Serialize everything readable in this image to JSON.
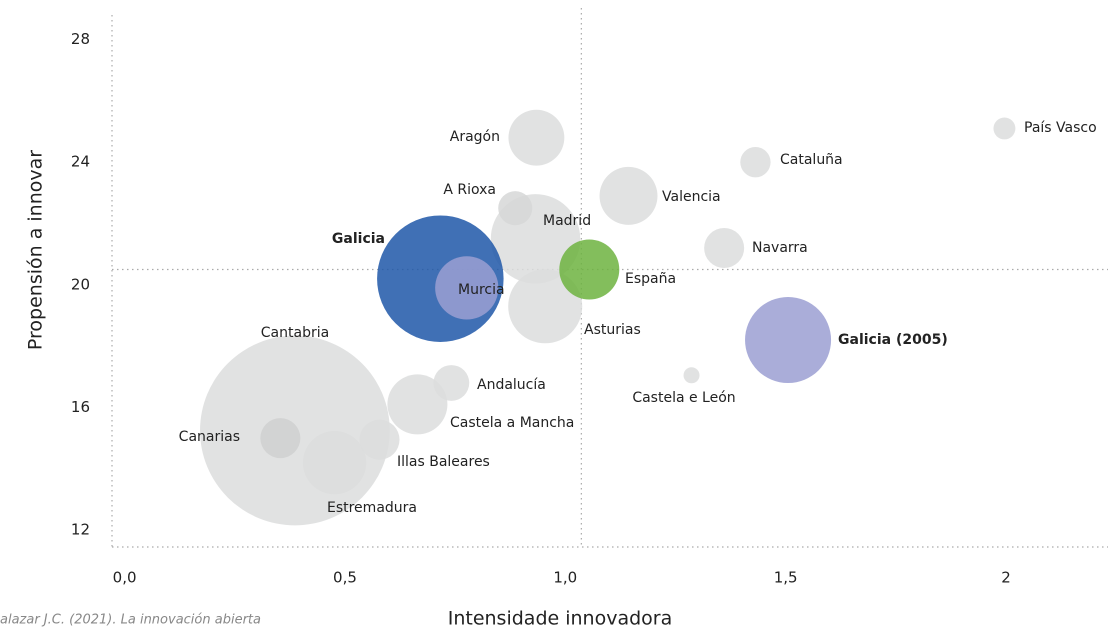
{
  "chart_data": {
    "type": "scatter",
    "xlabel": "Intensidade innovadora",
    "ylabel": "Propensión a innovar",
    "source": "alazar J.C. (2021). La innovación abierta",
    "xlim": [
      -0.015,
      2.245
    ],
    "ylim": [
      11.45,
      28.8
    ],
    "xticks": [
      {
        "value": 0,
        "label": "0,0"
      },
      {
        "value": 0.5,
        "label": "0,5"
      },
      {
        "value": 1,
        "label": "1,0"
      },
      {
        "value": 1.5,
        "label": "1,5"
      },
      2
    ],
    "yticks": [
      12,
      16,
      20,
      24,
      28
    ],
    "reference_lines": {
      "x": 1.05,
      "y": 20.5
    },
    "series": [
      {
        "labels": [
          "Cantabria",
          "Madrid",
          "Asturias",
          "Estremadura",
          "Castela a Mancha",
          "Canarias",
          "Illas Baleares",
          "Andalucía",
          "Aragón",
          "Valencia",
          "A Rioxa",
          "Navarra",
          "Cataluña",
          "País Vasco",
          "Castela e León",
          "Galicia",
          "Murcia",
          "España",
          "Galicia (2005)"
        ],
        "x": [
          0.4,
          0.946,
          0.968,
          0.49,
          0.678,
          0.367,
          0.592,
          0.755,
          0.948,
          1.157,
          0.9,
          1.374,
          1.445,
          2.01,
          1.3,
          0.73,
          0.79,
          1.068,
          1.519
        ],
        "values": [
          15.25,
          21.5,
          19.3,
          14.2,
          16.1,
          15.0,
          14.95,
          16.8,
          24.8,
          22.9,
          22.5,
          21.2,
          24.0,
          25.1,
          17.05,
          20.2,
          19.9,
          20.5,
          18.2
        ],
        "sizes": [
          90,
          20,
          13.7,
          10,
          9,
          4,
          4,
          3.2,
          7.8,
          8.4,
          2.9,
          4,
          2.3,
          1.2,
          0.64,
          40,
          10,
          9,
          18.5
        ],
        "colors": [
          "#dcdddd",
          "#dcdddd",
          "#dcdddd",
          "#dcdddd",
          "#dcdddd",
          "#cfd0d0",
          "#dcdddd",
          "#dcdddd",
          "#dcdddd",
          "#dcdddd",
          "#d6d7d7",
          "#dcdddd",
          "#dcdddd",
          "#dcdddd",
          "#dcdddd",
          "#1f57a8",
          "#9b9fd2",
          "#6db33f",
          "#9b9fd2"
        ]
      }
    ]
  }
}
